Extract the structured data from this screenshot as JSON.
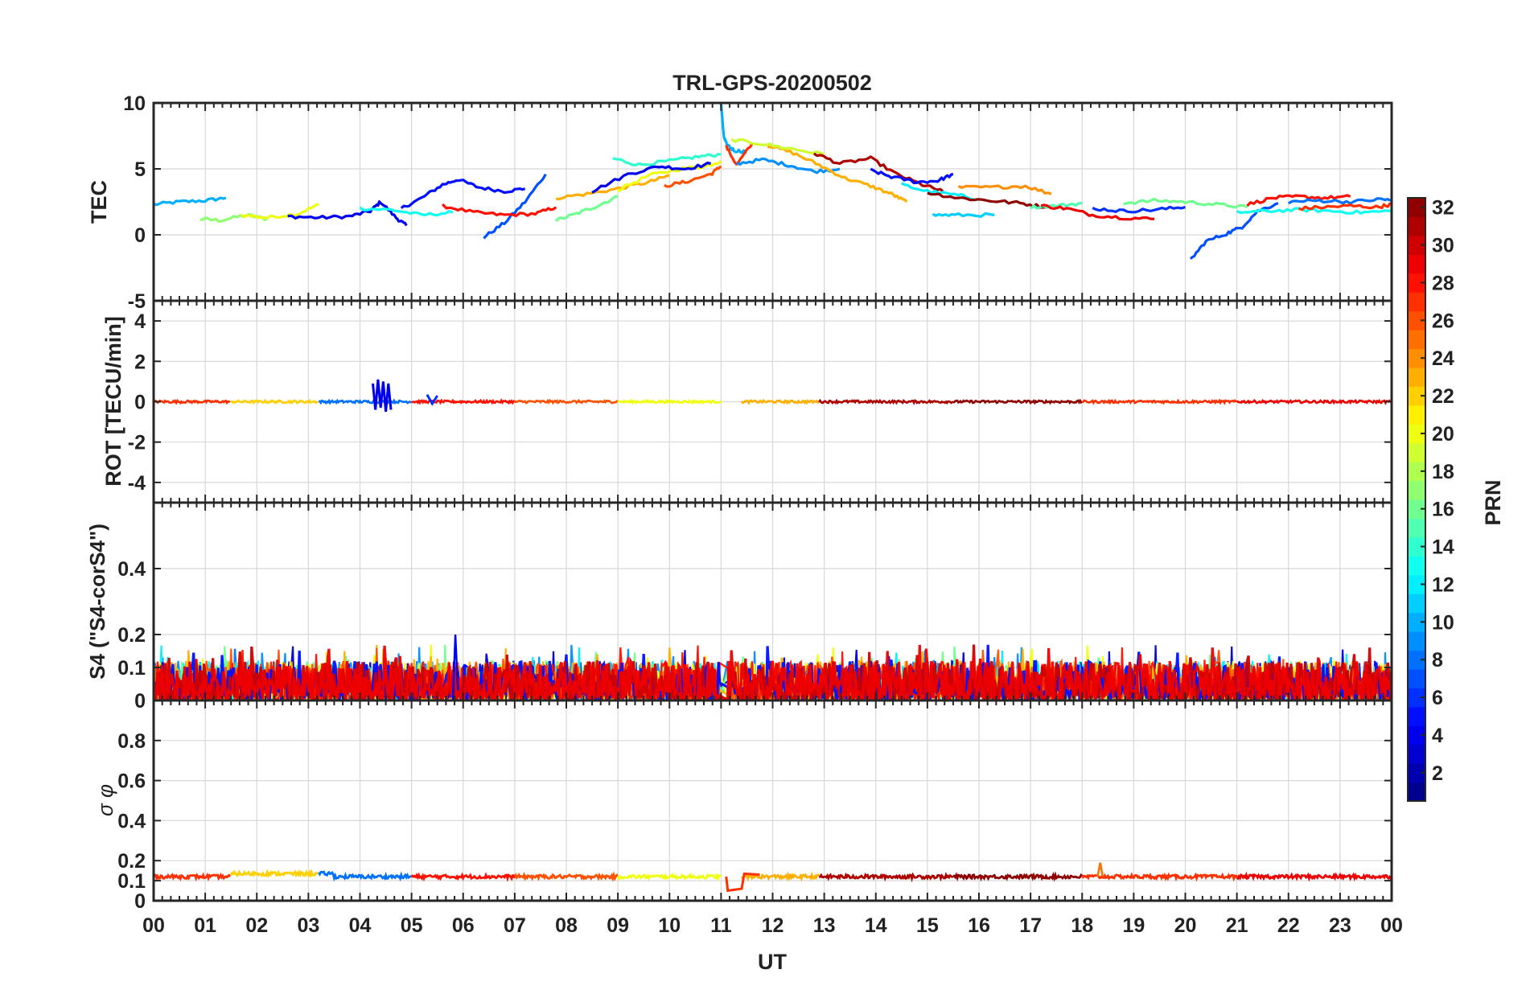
{
  "chart_data": {
    "type": "line",
    "title": "TRL-GPS-20200502",
    "xlabel": "UT",
    "x_tick_labels": [
      "00",
      "01",
      "02",
      "03",
      "04",
      "05",
      "06",
      "07",
      "08",
      "09",
      "10",
      "11",
      "12",
      "13",
      "14",
      "15",
      "16",
      "17",
      "18",
      "19",
      "20",
      "21",
      "22",
      "23",
      "00"
    ],
    "xlim": [
      0,
      24
    ],
    "panels": [
      {
        "id": "tec",
        "ylabel": "TEC",
        "ylim": [
          -5,
          10
        ],
        "ytick_values": [
          -5,
          0,
          5,
          10
        ],
        "ytick_labels": [
          "-5",
          "0",
          "5",
          "10"
        ],
        "series": [
          {
            "prn": 10,
            "x": [
              0.0,
              0.5,
              1.0,
              1.4
            ],
            "y": [
              2.3,
              2.5,
              2.6,
              2.8
            ]
          },
          {
            "prn": 17,
            "x": [
              0.9,
              1.3,
              1.8,
              2.2
            ],
            "y": [
              1.2,
              1.1,
              1.5,
              1.2
            ]
          },
          {
            "prn": 20,
            "x": [
              1.7,
              2.2,
              2.8,
              3.2
            ],
            "y": [
              1.5,
              1.3,
              1.6,
              2.3
            ]
          },
          {
            "prn": 4,
            "x": [
              2.6,
              3.2,
              3.8,
              4.2,
              4.4,
              4.7,
              4.9
            ],
            "y": [
              1.4,
              1.3,
              1.4,
              1.8,
              2.5,
              1.3,
              0.7
            ]
          },
          {
            "prn": 5,
            "x": [
              4.8,
              5.2,
              5.6,
              5.9,
              6.3,
              6.8,
              7.2
            ],
            "y": [
              2.0,
              2.8,
              3.8,
              4.2,
              3.6,
              3.3,
              3.5
            ]
          },
          {
            "prn": 7,
            "x": [
              6.4,
              6.8,
              7.2,
              7.6
            ],
            "y": [
              -0.2,
              0.9,
              2.5,
              4.6
            ]
          },
          {
            "prn": 13,
            "x": [
              4.0,
              4.6,
              5.2,
              5.8
            ],
            "y": [
              2.0,
              1.9,
              1.5,
              1.7
            ]
          },
          {
            "prn": 28,
            "x": [
              5.6,
              6.2,
              6.8,
              7.4,
              7.8
            ],
            "y": [
              2.2,
              1.7,
              1.5,
              1.6,
              2.1
            ]
          },
          {
            "prn": 16,
            "x": [
              7.8,
              8.2,
              8.6,
              9.0
            ],
            "y": [
              1.1,
              1.6,
              2.2,
              2.9
            ]
          },
          {
            "prn": 23,
            "x": [
              7.8,
              8.4,
              9.0,
              9.6,
              10.0
            ],
            "y": [
              2.8,
              3.1,
              3.5,
              4.0,
              4.5
            ]
          },
          {
            "prn": 14,
            "x": [
              8.9,
              9.4,
              10.0,
              10.5,
              11.0
            ],
            "y": [
              5.8,
              5.3,
              5.6,
              5.9,
              6.1
            ]
          },
          {
            "prn": 20,
            "x": [
              9.0,
              9.6,
              10.2,
              10.7,
              11.0
            ],
            "y": [
              3.4,
              4.5,
              5.0,
              5.2,
              5.6
            ]
          },
          {
            "prn": 4,
            "x": [
              8.5,
              9.2,
              9.8,
              10.3,
              10.8
            ],
            "y": [
              3.3,
              4.6,
              5.2,
              5.0,
              5.4
            ]
          },
          {
            "prn": 26,
            "x": [
              9.9,
              10.3,
              10.8,
              11.0
            ],
            "y": [
              3.7,
              4.0,
              4.6,
              5.2
            ]
          },
          {
            "prn": 10,
            "x": [
              11.0,
              11.05,
              11.1,
              11.25,
              11.5
            ],
            "y": [
              10.0,
              7.5,
              6.9,
              6.4,
              6.3
            ]
          },
          {
            "prn": 27,
            "x": [
              11.1,
              11.3,
              11.6
            ],
            "y": [
              6.7,
              5.3,
              6.9
            ]
          },
          {
            "prn": 9,
            "x": [
              11.3,
              11.8,
              12.3,
              12.8,
              13.3
            ],
            "y": [
              5.4,
              5.7,
              5.3,
              4.8,
              5.0
            ]
          },
          {
            "prn": 23,
            "x": [
              11.9,
              12.4,
              12.9,
              13.4,
              13.9,
              14.3,
              14.6
            ],
            "y": [
              6.8,
              6.2,
              5.3,
              4.3,
              3.7,
              3.1,
              2.5
            ]
          },
          {
            "prn": 19,
            "x": [
              11.2,
              11.8,
              12.4,
              13.0
            ],
            "y": [
              7.2,
              6.9,
              6.5,
              6.1
            ]
          },
          {
            "prn": 31,
            "x": [
              12.8,
              13.3,
              13.9,
              14.4,
              14.9,
              15.3
            ],
            "y": [
              6.2,
              5.4,
              5.8,
              4.6,
              3.8,
              3.3
            ]
          },
          {
            "prn": 5,
            "x": [
              13.9,
              14.3,
              14.8,
              15.2,
              15.5
            ],
            "y": [
              4.9,
              4.4,
              4.0,
              4.1,
              4.6
            ]
          },
          {
            "prn": 12,
            "x": [
              14.5,
              15.0,
              15.6,
              16.0
            ],
            "y": [
              3.8,
              3.3,
              3.0,
              2.7
            ]
          },
          {
            "prn": 11,
            "x": [
              15.1,
              15.6,
              16.3
            ],
            "y": [
              1.5,
              1.5,
              1.5
            ]
          },
          {
            "prn": 24,
            "x": [
              15.6,
              16.2,
              16.9,
              17.4
            ],
            "y": [
              3.6,
              3.6,
              3.7,
              3.1
            ]
          },
          {
            "prn": 32,
            "x": [
              15.0,
              15.6,
              16.2,
              16.8,
              17.3
            ],
            "y": [
              3.2,
              2.8,
              2.6,
              2.4,
              2.1
            ]
          },
          {
            "prn": 15,
            "x": [
              17.0,
              17.5,
              18.0
            ],
            "y": [
              2.1,
              2.2,
              2.4
            ]
          },
          {
            "prn": 29,
            "x": [
              17.2,
              17.7,
              18.2,
              18.8,
              19.4
            ],
            "y": [
              2.2,
              2.0,
              1.5,
              1.3,
              1.2
            ]
          },
          {
            "prn": 6,
            "x": [
              18.2,
              18.8,
              19.4,
              20.0
            ],
            "y": [
              2.0,
              1.8,
              1.9,
              2.1
            ]
          },
          {
            "prn": 16,
            "x": [
              18.8,
              19.4,
              20.0,
              20.6,
              21.2
            ],
            "y": [
              2.4,
              2.6,
              2.5,
              2.3,
              2.1
            ]
          },
          {
            "prn": 7,
            "x": [
              20.1,
              20.4,
              20.8,
              21.1,
              21.4,
              21.8
            ],
            "y": [
              -1.9,
              -0.5,
              0.1,
              0.6,
              1.8,
              2.4
            ]
          },
          {
            "prn": 28,
            "x": [
              21.2,
              21.7,
              22.2,
              22.7,
              23.2
            ],
            "y": [
              2.3,
              2.8,
              2.9,
              2.8,
              2.9
            ]
          },
          {
            "prn": 13,
            "x": [
              21.0,
              21.6,
              22.2,
              22.8,
              23.4,
              24.0
            ],
            "y": [
              1.7,
              1.8,
              1.9,
              1.8,
              1.7,
              1.8
            ]
          },
          {
            "prn": 8,
            "x": [
              22.0,
              22.6,
              23.2,
              23.8,
              24.0
            ],
            "y": [
              2.5,
              2.6,
              2.5,
              2.7,
              2.6
            ]
          },
          {
            "prn": 27,
            "x": [
              22.2,
              22.7,
              23.2,
              23.7,
              24.0
            ],
            "y": [
              2.0,
              2.1,
              2.2,
              2.1,
              2.3
            ]
          }
        ]
      },
      {
        "id": "rot",
        "ylabel": "ROT [TECU/min]",
        "ylim": [
          -5,
          5
        ],
        "ytick_values": [
          -4,
          -2,
          0,
          2,
          4
        ],
        "ytick_labels": [
          "-4",
          "-2",
          "0",
          "2",
          "4"
        ],
        "baseline": 0,
        "noise": 0.06,
        "spikes": [
          {
            "prn": 4,
            "x": [
              4.25,
              4.3,
              4.35,
              4.4,
              4.45,
              4.5,
              4.55,
              4.6
            ],
            "y": [
              0.9,
              -0.4,
              1.1,
              -0.3,
              1.0,
              -0.5,
              0.9,
              -0.4
            ]
          },
          {
            "prn": 6,
            "x": [
              5.3,
              5.4,
              5.5
            ],
            "y": [
              0.35,
              -0.1,
              0.3
            ]
          }
        ]
      },
      {
        "id": "s4",
        "ylabel": "S4 (\"S4-corS4\")",
        "ylim": [
          0,
          0.6
        ],
        "ytick_values": [
          0,
          0.1,
          0.2,
          0.4
        ],
        "ytick_labels": [
          "0",
          "0.1",
          "0.2",
          "0.4"
        ],
        "typical_range": [
          0.0,
          0.12
        ],
        "max_peak": 0.2
      },
      {
        "id": "sigma_phi",
        "ylabel": "σ φ",
        "ylim": [
          0,
          1.0
        ],
        "ytick_values": [
          0,
          0.1,
          0.2,
          0.4,
          0.6,
          0.8
        ],
        "ytick_labels": [
          "0",
          "0.1",
          "0.2",
          "0.4",
          "0.6",
          "0.8"
        ],
        "baseline": 0.12,
        "gap_dip": {
          "x": [
            11.1,
            11.45
          ],
          "y": 0.05
        },
        "peak": {
          "x": 18.35,
          "y": 0.19
        }
      }
    ],
    "colorbar": {
      "label": "PRN",
      "colormap": "jet",
      "range": [
        1,
        32
      ],
      "tick_labels": [
        "2",
        "4",
        "6",
        "8",
        "10",
        "12",
        "14",
        "16",
        "18",
        "20",
        "22",
        "24",
        "26",
        "28",
        "30",
        "32"
      ]
    }
  }
}
